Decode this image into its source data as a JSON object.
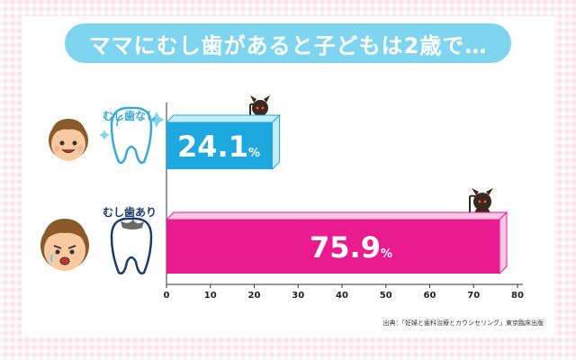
{
  "title": "ママにむし歯があると子どもは2歳で…",
  "source": "出典：「妊婦と歯科治療とカウンセリング」東京臨床出版",
  "colors": {
    "background_pink": "#fbe3ea",
    "title_blue": "#7fd4ef",
    "bar_blue": "#1ea8e0",
    "bar_blue_top": "#c5ecfb",
    "bar_magenta": "#ea1b8e",
    "bar_magenta_top": "#f9c6e3"
  },
  "icons": [
    "child-happy-icon",
    "child-crying-icon",
    "healthy-tooth-icon",
    "decayed-tooth-icon",
    "devil-icon"
  ],
  "chart_data": {
    "type": "bar",
    "orientation": "horizontal",
    "title": "ママにむし歯があると子どもは2歳で…",
    "categories": [
      "むし歯なし",
      "むし歯あり"
    ],
    "values": [
      24.1,
      75.9
    ],
    "value_labels": [
      "24.1",
      "75.9"
    ],
    "unit": "%",
    "xlabel": "",
    "ylabel": "",
    "xlim": [
      0,
      80
    ],
    "xticks": [
      0,
      10,
      20,
      30,
      40,
      50,
      60,
      70,
      80
    ],
    "grid": false
  }
}
